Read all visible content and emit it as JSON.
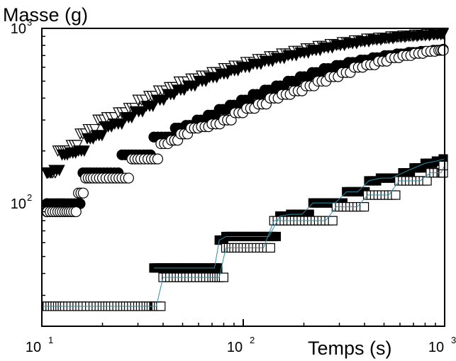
{
  "chart_data": {
    "type": "scatter",
    "title": "",
    "ylabel": "Masse (g)",
    "xlabel": "Temps (s)",
    "x_scale": "log",
    "y_scale": "log",
    "xlim": [
      10,
      1000
    ],
    "ylim": [
      20,
      1000
    ],
    "x_ticks": [
      {
        "value": 10,
        "base": "10",
        "exp": "1"
      },
      {
        "value": 100,
        "base": "10",
        "exp": "2"
      },
      {
        "value": 1000,
        "base": "10",
        "exp": "3"
      }
    ],
    "y_ticks": [
      {
        "value": 100,
        "base": "10",
        "exp": "2"
      },
      {
        "value": 1000,
        "base": "10",
        "exp": "3"
      }
    ],
    "grid": false,
    "legend": "none",
    "series": [
      {
        "marker": "triangle-down-open",
        "color": "#000000",
        "x": [
          10,
          11,
          12,
          13,
          14,
          15.5,
          17,
          19,
          21,
          24,
          27,
          30,
          34,
          38,
          43,
          48,
          55,
          62,
          70,
          80,
          90,
          103,
          118,
          135,
          155,
          178,
          205,
          235,
          270,
          310,
          356,
          410,
          470,
          540,
          620,
          710,
          815,
          935,
          1000
        ],
        "y": [
          150,
          150,
          200,
          200,
          215,
          250,
          265,
          300,
          310,
          330,
          350,
          390,
          410,
          440,
          460,
          495,
          515,
          535,
          560,
          590,
          610,
          640,
          665,
          690,
          715,
          740,
          765,
          790,
          810,
          830,
          850,
          870,
          880,
          895,
          905,
          915,
          925,
          935,
          940
        ]
      },
      {
        "marker": "triangle-down-filled",
        "color": "#000000",
        "x": [
          10.4,
          11.5,
          12.6,
          13.8,
          15.2,
          16.8,
          18.6,
          20.6,
          23,
          26,
          29,
          33,
          37,
          42,
          47,
          53,
          60,
          68,
          77,
          87,
          98,
          112,
          128,
          146,
          167,
          192,
          220,
          252,
          290,
          333,
          383,
          440,
          505,
          580,
          665,
          765,
          880,
          1000
        ],
        "y": [
          150,
          155,
          190,
          195,
          200,
          235,
          245,
          275,
          285,
          310,
          335,
          360,
          390,
          420,
          445,
          470,
          500,
          525,
          550,
          575,
          600,
          625,
          650,
          675,
          700,
          725,
          750,
          775,
          800,
          820,
          840,
          860,
          875,
          890,
          900,
          910,
          920,
          930
        ]
      },
      {
        "marker": "circle-filled",
        "color": "#000000",
        "x": [
          10,
          11,
          12,
          13,
          14.5,
          16,
          17.5,
          19.5,
          22,
          25,
          28,
          32,
          36,
          41,
          46,
          52,
          59,
          67,
          76,
          86,
          98,
          112,
          128,
          146,
          167,
          192,
          220,
          252,
          290,
          333,
          383,
          440,
          505,
          580,
          665,
          765,
          880,
          1000
        ],
        "y": [
          100,
          100,
          100,
          100,
          100,
          150,
          150,
          150,
          150,
          190,
          190,
          190,
          240,
          240,
          270,
          280,
          300,
          320,
          345,
          365,
          390,
          420,
          445,
          470,
          500,
          530,
          560,
          590,
          615,
          640,
          660,
          680,
          700,
          715,
          730,
          740,
          750,
          760
        ]
      },
      {
        "marker": "circle-open",
        "color": "#000000",
        "x": [
          10,
          11,
          12,
          13,
          14,
          15.2,
          16.5,
          18,
          20,
          22.5,
          25,
          28,
          31,
          35,
          39,
          44,
          49,
          55,
          62,
          70,
          80,
          91,
          104,
          119,
          136,
          156,
          179,
          205,
          235,
          270,
          310,
          356,
          410,
          470,
          540,
          620,
          710,
          815,
          935,
          1000
        ],
        "y": [
          90,
          90,
          90,
          90,
          90,
          115,
          140,
          140,
          140,
          140,
          140,
          180,
          180,
          180,
          220,
          230,
          250,
          270,
          275,
          285,
          300,
          330,
          350,
          370,
          400,
          420,
          440,
          470,
          500,
          530,
          560,
          600,
          620,
          650,
          680,
          700,
          720,
          740,
          750,
          750
        ]
      },
      {
        "marker": "square-filled",
        "color": "#000000",
        "x": [
          36,
          40,
          45,
          50,
          56,
          63,
          72,
          76,
          82,
          92,
          104,
          118,
          134,
          152,
          172,
          196,
          222,
          252,
          286,
          326,
          370,
          420,
          480,
          545,
          620,
          705,
          800,
          910,
          1000
        ],
        "y": [
          43,
          43,
          43,
          43,
          43,
          43,
          43,
          62,
          65,
          65,
          65,
          65,
          65,
          85,
          87,
          87,
          101,
          101,
          101,
          117,
          117,
          135,
          140,
          140,
          150,
          160,
          170,
          175,
          180
        ]
      },
      {
        "marker": "square-open",
        "color": "#000000",
        "x": [
          10,
          11,
          12,
          13,
          14.5,
          16,
          18,
          20,
          22,
          24.5,
          27,
          30,
          33,
          36,
          37,
          40,
          45,
          50,
          56,
          63,
          70,
          76,
          82,
          90,
          100,
          112,
          126,
          142,
          160,
          180,
          202,
          228,
          256,
          290,
          326,
          368,
          415,
          468,
          528,
          594,
          670,
          755,
          850,
          960,
          1000
        ],
        "y": [
          26,
          26,
          26,
          26,
          26,
          26,
          26,
          26,
          26,
          26,
          26,
          26,
          26,
          26,
          26,
          38,
          38,
          38,
          38,
          38,
          38,
          38,
          56,
          56,
          56,
          56,
          56,
          80,
          80,
          80,
          80,
          80,
          80,
          96,
          96,
          96,
          112,
          112,
          112,
          135,
          135,
          135,
          150,
          150,
          165
        ]
      }
    ]
  }
}
